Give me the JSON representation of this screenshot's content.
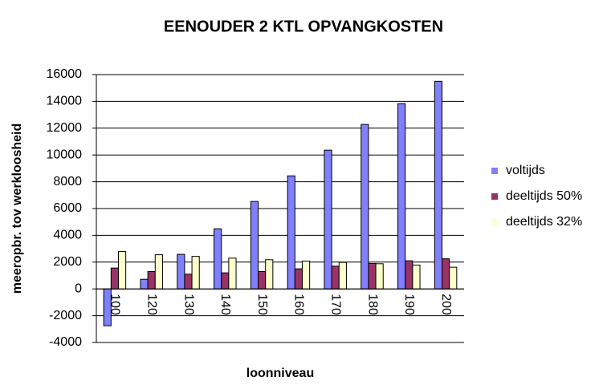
{
  "chart_data": {
    "type": "bar",
    "title": "EENOUDER 2 KTL OPVANGKOSTEN",
    "x_label": "loonniveau",
    "y_label": "meeropbr. tov werkloosheid",
    "categories": [
      "100",
      "120",
      "130",
      "140",
      "150",
      "160",
      "170",
      "180",
      "190",
      "200"
    ],
    "series": [
      {
        "name": "voltijds",
        "color": "#8080ff",
        "values": [
          -2750,
          720,
          2580,
          4490,
          6530,
          8440,
          10360,
          12280,
          13830,
          15500
        ]
      },
      {
        "name": "deeltijds 50%",
        "color": "#993366",
        "values": [
          1560,
          1300,
          1100,
          1200,
          1300,
          1500,
          1700,
          1900,
          2100,
          2250
        ]
      },
      {
        "name": "deeltijds 32%",
        "color": "#ffffcc",
        "values": [
          2800,
          2550,
          2430,
          2300,
          2180,
          2080,
          1980,
          1880,
          1780,
          1620
        ]
      }
    ],
    "ylim": [
      -4000,
      16000
    ],
    "yticks": [
      -4000,
      -2000,
      0,
      2000,
      4000,
      6000,
      8000,
      10000,
      12000,
      14000,
      16000
    ],
    "grid": true,
    "legend": "right"
  }
}
